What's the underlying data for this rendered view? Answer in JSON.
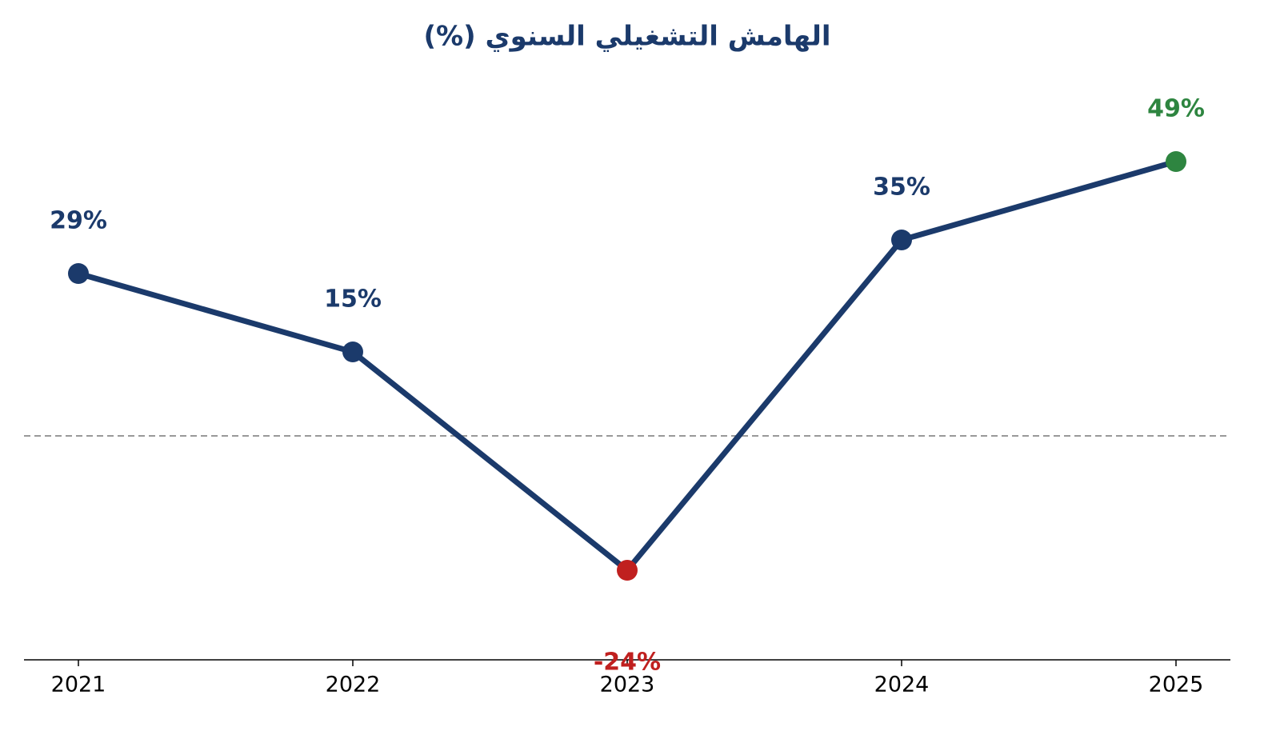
{
  "chart_data": {
    "type": "line",
    "title": "الهامش التشغيلي السنوي (%)",
    "categories": [
      "2021",
      "2022",
      "2023",
      "2024",
      "2025"
    ],
    "series": [
      {
        "color": "#1b3a6b",
        "values": [
          29,
          15,
          -24,
          35,
          49
        ],
        "value_labels": [
          "29%",
          "15%",
          "-24%",
          "35%",
          "49%"
        ],
        "point_colors": [
          "#1b3a6b",
          "#1b3a6b",
          "#c0201f",
          "#1b3a6b",
          "#2e8540"
        ]
      }
    ],
    "ylim": [
      -40,
      64
    ],
    "reference_line": 0
  }
}
